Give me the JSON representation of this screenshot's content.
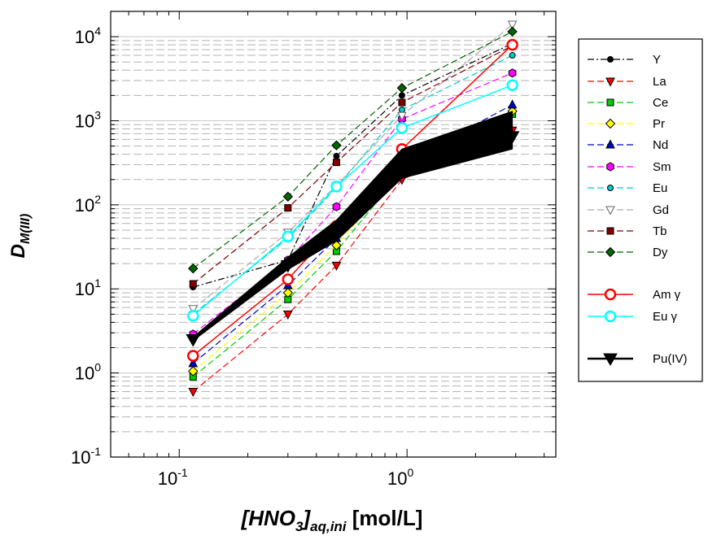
{
  "chart_data": {
    "type": "line",
    "x_scale": "log",
    "y_scale": "log",
    "xlim": [
      0.05,
      4.5
    ],
    "ylim": [
      0.1,
      20000
    ],
    "x_ticks": [
      {
        "value": 0.1,
        "base": "10",
        "exp": "-1"
      },
      {
        "value": 1,
        "base": "10",
        "exp": "0"
      }
    ],
    "y_ticks": [
      {
        "value": 0.1,
        "base": "10",
        "exp": "-1"
      },
      {
        "value": 1,
        "base": "10",
        "exp": "0"
      },
      {
        "value": 10,
        "base": "10",
        "exp": "1"
      },
      {
        "value": 100,
        "base": "10",
        "exp": "2"
      },
      {
        "value": 1000,
        "base": "10",
        "exp": "3"
      },
      {
        "value": 10000,
        "base": "10",
        "exp": "4"
      }
    ],
    "xlabel": {
      "pre": "[HNO",
      "sub1": "3",
      "mid": "]",
      "sub2": "aq,ini",
      "post": "  [mol/L]"
    },
    "ylabel": {
      "main": "D",
      "sub": "M(III)"
    },
    "grid": "horizontal minor dashed",
    "legend_position": "right",
    "x": [
      0.115,
      0.3,
      0.49,
      0.95,
      2.9
    ],
    "series": [
      {
        "name": "Y",
        "color": "#000000",
        "marker": "circle-small",
        "dash": "8,3,2,3",
        "values": [
          10.5,
          22,
          380,
          2000,
          8300
        ]
      },
      {
        "name": "La",
        "color": "#ff0000",
        "marker": "triangle-down",
        "dash": "8,4",
        "values": [
          0.6,
          5,
          19,
          200,
          770
        ]
      },
      {
        "name": "Ce",
        "color": "#00cc00",
        "marker": "square",
        "dash": "8,4",
        "values": [
          0.9,
          7.5,
          28,
          250,
          1200
        ]
      },
      {
        "name": "Pr",
        "color": "#ffff00",
        "marker": "diamond",
        "dash": "8,4",
        "values": [
          1.05,
          9,
          33,
          270,
          1300
        ]
      },
      {
        "name": "Nd",
        "color": "#0000cc",
        "marker": "triangle-up",
        "dash": "8,4",
        "values": [
          1.3,
          11,
          40,
          310,
          1550
        ]
      },
      {
        "name": "Sm",
        "color": "#ff00ff",
        "marker": "hexagon",
        "dash": "8,4",
        "values": [
          2.9,
          22,
          95,
          1050,
          3700
        ]
      },
      {
        "name": "Eu",
        "color": "#00cccc",
        "marker": "circle-small",
        "dash": "8,4",
        "values": [
          5,
          40,
          160,
          1350,
          6000
        ]
      },
      {
        "name": "Gd",
        "color": "#aaaaaa",
        "marker": "triangle-down-open",
        "dash": "8,4",
        "values": [
          5.8,
          47,
          170,
          1150,
          14000
        ]
      },
      {
        "name": "Tb",
        "color": "#800000",
        "marker": "square",
        "dash": "8,4",
        "values": [
          11.5,
          92,
          320,
          1650,
          7800
        ]
      },
      {
        "name": "Dy",
        "color": "#006600",
        "marker": "diamond",
        "dash": "8,4",
        "values": [
          17.5,
          125,
          510,
          2450,
          11500
        ]
      },
      {
        "name": "Am γ",
        "color": "#ff0000",
        "marker": "circle-open-large",
        "dash": "",
        "values": [
          1.6,
          13,
          56,
          460,
          8000
        ]
      },
      {
        "name": "Eu γ",
        "color": "#00ffff",
        "marker": "circle-open-large",
        "dash": "",
        "values": [
          4.8,
          42,
          165,
          820,
          2650
        ]
      },
      {
        "name": "Pu(IV)",
        "color": "#000000",
        "marker": "triangle-down-large",
        "dash": "",
        "values": [
          2.5,
          19,
          45,
          270,
          650
        ]
      }
    ]
  }
}
